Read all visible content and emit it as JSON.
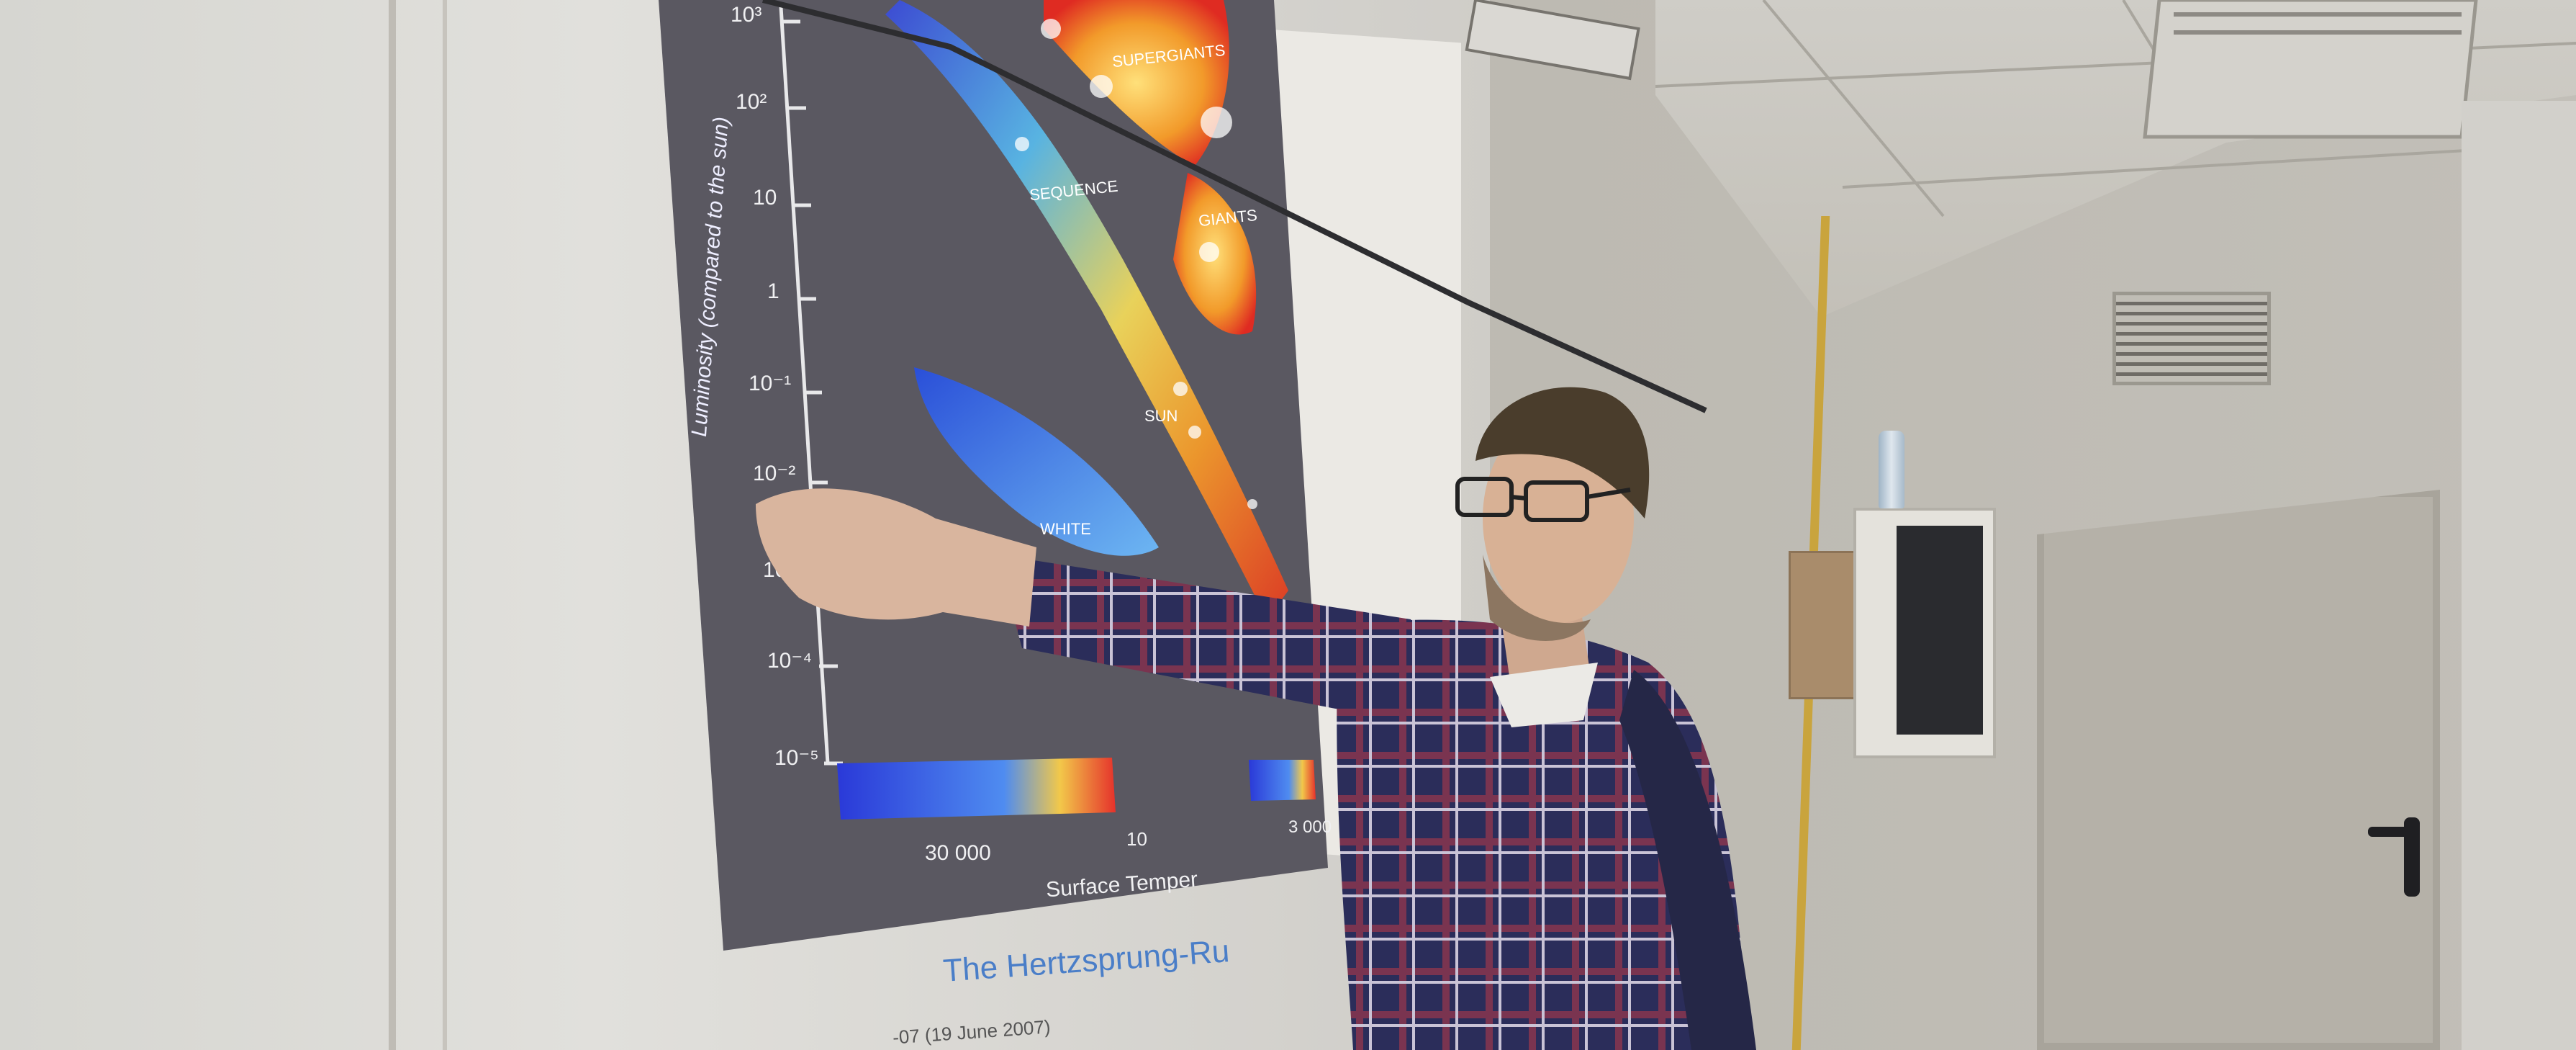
{
  "scene": {
    "description_free": true
  },
  "projection": {
    "y_axis_label": "Luminosity (compared to the sun)",
    "y_ticks": [
      "10³",
      "10²",
      "10",
      "1",
      "10⁻¹",
      "10⁻²",
      "10",
      "10⁻⁴",
      "10⁻⁵"
    ],
    "x_tick_30000": "30 000",
    "x_tick_10": "10",
    "x_tick_3000": "3 000",
    "x_axis_label": "Surface Temper",
    "region_supergiants": "SUPERGIANTS",
    "region_giants": "GIANTS",
    "region_sequence": "SEQUENCE",
    "region_sun": "SUN",
    "region_white": "WHITE",
    "caption": "The Hertzsprung-Ru",
    "credit": "-07 (19 June 2007)"
  },
  "colors": {
    "wall": "#b9b6ad",
    "ceiling": "#c9c7c0",
    "whiteboard": "#d8d7d2",
    "chart_bg": "#5c5a63",
    "shirt_navy": "#2a2c5a",
    "shirt_red": "#8a3550",
    "door": "#b2aea5",
    "conduit_yellow": "#c8a33a",
    "cork": "#a98c6b"
  }
}
